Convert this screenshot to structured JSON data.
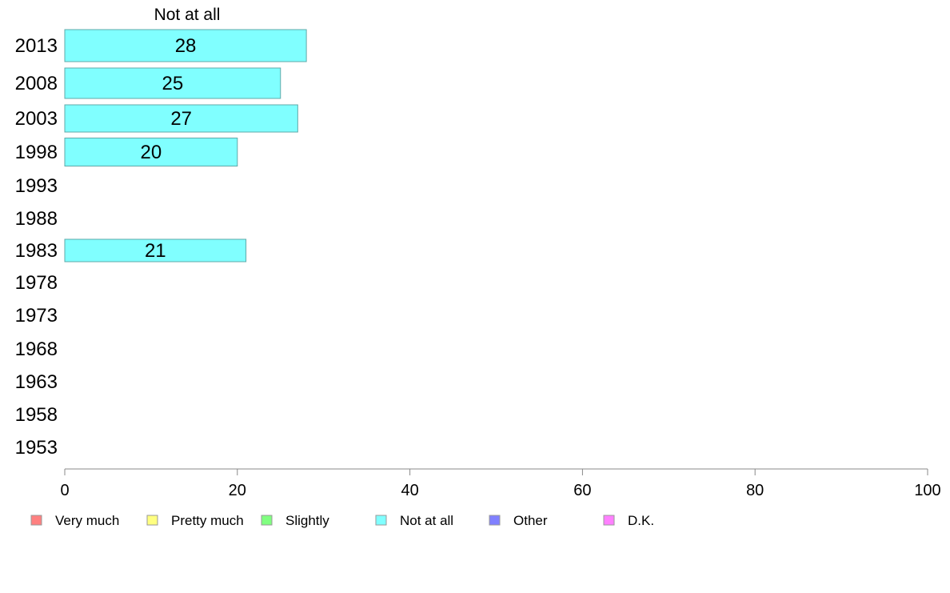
{
  "chart_data": {
    "type": "bar",
    "orientation": "horizontal",
    "title": "Not at all",
    "categories": [
      "2013",
      "2008",
      "2003",
      "1998",
      "1993",
      "1988",
      "1983",
      "1978",
      "1973",
      "1968",
      "1963",
      "1958",
      "1953"
    ],
    "series": [
      {
        "name": "Not at all",
        "values": [
          28,
          25,
          27,
          20,
          null,
          null,
          21,
          null,
          null,
          null,
          null,
          null,
          null
        ],
        "color": "#80ffff"
      }
    ],
    "xlim": [
      0,
      100
    ],
    "xticks": [
      0,
      20,
      40,
      60,
      80,
      100
    ],
    "grid": false,
    "legend": {
      "placement": "bottom",
      "entries": [
        {
          "label": "Very much",
          "color": "#ff8080"
        },
        {
          "label": "Pretty much",
          "color": "#ffff80"
        },
        {
          "label": "Slightly",
          "color": "#80ff80"
        },
        {
          "label": "Not at all",
          "color": "#80ffff"
        },
        {
          "label": "Other",
          "color": "#8080ff"
        },
        {
          "label": "D.K.",
          "color": "#ff80ff"
        }
      ]
    }
  }
}
